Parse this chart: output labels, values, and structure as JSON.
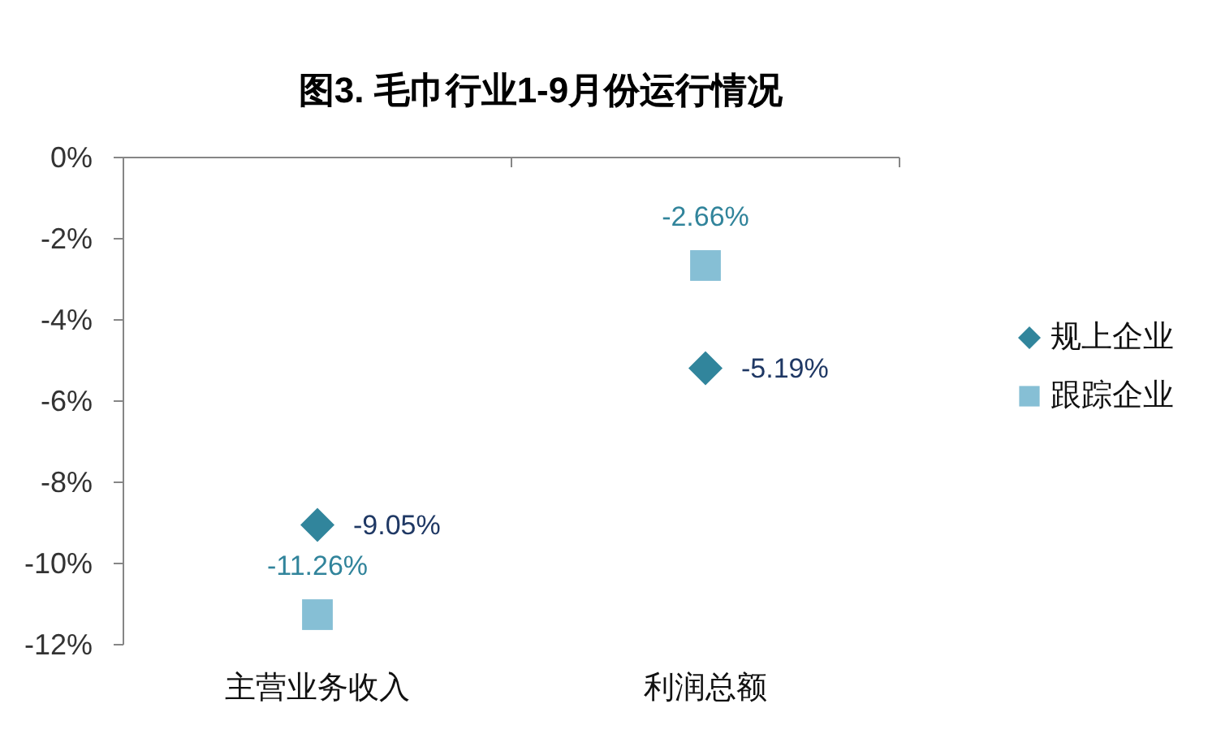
{
  "chart_data": {
    "type": "scatter",
    "title": "图3. 毛巾行业1-9月份运行情况",
    "categories": [
      "主营业务收入",
      "利润总额"
    ],
    "series": [
      {
        "name": "规上企业",
        "color": "#31859c",
        "marker": "diamond",
        "values": [
          -9.05,
          -5.19
        ],
        "value_labels": [
          "-9.05%",
          "-5.19%"
        ]
      },
      {
        "name": "跟踪企业",
        "color": "#86bfd5",
        "marker": "square",
        "values": [
          -11.26,
          -2.66
        ],
        "value_labels": [
          "-11.26%",
          "-2.66%"
        ]
      }
    ],
    "ylim": [
      -12,
      0
    ],
    "yticks": [
      {
        "value": 0,
        "label": "0%"
      },
      {
        "value": -2,
        "label": "-2%"
      },
      {
        "value": -4,
        "label": "-4%"
      },
      {
        "value": -6,
        "label": "-6%"
      },
      {
        "value": -8,
        "label": "-8%"
      },
      {
        "value": -10,
        "label": "-10%"
      },
      {
        "value": -12,
        "label": "-12%"
      }
    ],
    "legend": "right"
  }
}
